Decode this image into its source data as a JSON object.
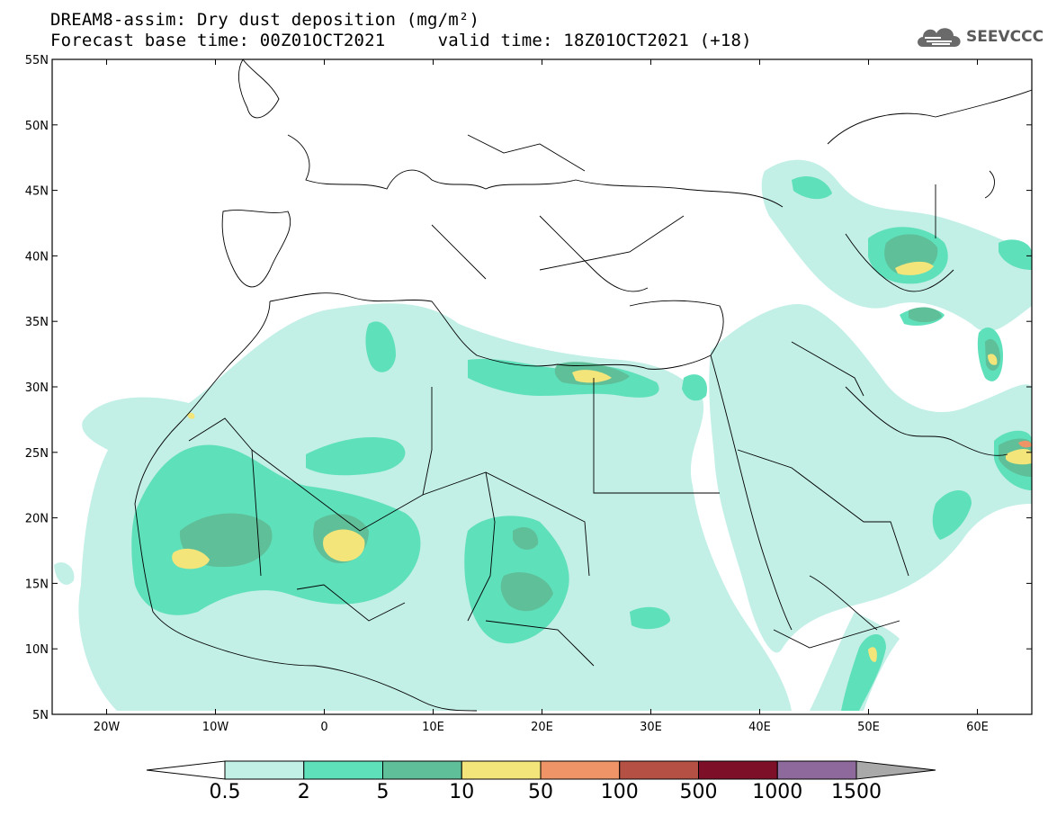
{
  "header": {
    "title_line1": "DREAM8-assim: Dry dust deposition (mg/m²)",
    "title_line2": "Forecast base time: 00Z01OCT2021     valid time: 18Z01OCT2021 (+18)"
  },
  "logo": {
    "text": "SEEVCCC",
    "icon": "cloud-logo-icon"
  },
  "map": {
    "projection": "lat-lon",
    "lon_range": [
      -25,
      65
    ],
    "lat_range": [
      5,
      55
    ],
    "lat_ticks": [
      "5N",
      "10N",
      "15N",
      "20N",
      "25N",
      "30N",
      "35N",
      "40N",
      "45N",
      "50N",
      "55N"
    ],
    "lon_ticks": [
      "20W",
      "10W",
      "0",
      "10E",
      "20E",
      "30E",
      "40E",
      "50E",
      "60E"
    ]
  },
  "colorbar": {
    "labels": [
      "0.5",
      "2",
      "5",
      "10",
      "50",
      "100",
      "500",
      "1000",
      "1500"
    ],
    "colors": [
      "#c2efe6",
      "#5ee0bb",
      "#5fbf98",
      "#f3e57a",
      "#ee9466",
      "#b55144",
      "#7d0f28",
      "#8e6a9c"
    ],
    "under_color": "#ffffff",
    "over_color": "#a9a9a9"
  },
  "chart_data": {
    "type": "heatmap",
    "variable": "Dry dust deposition",
    "unit": "mg/m²",
    "levels": [
      0.5,
      2,
      5,
      10,
      50,
      100,
      500,
      1000,
      1500
    ]
  }
}
